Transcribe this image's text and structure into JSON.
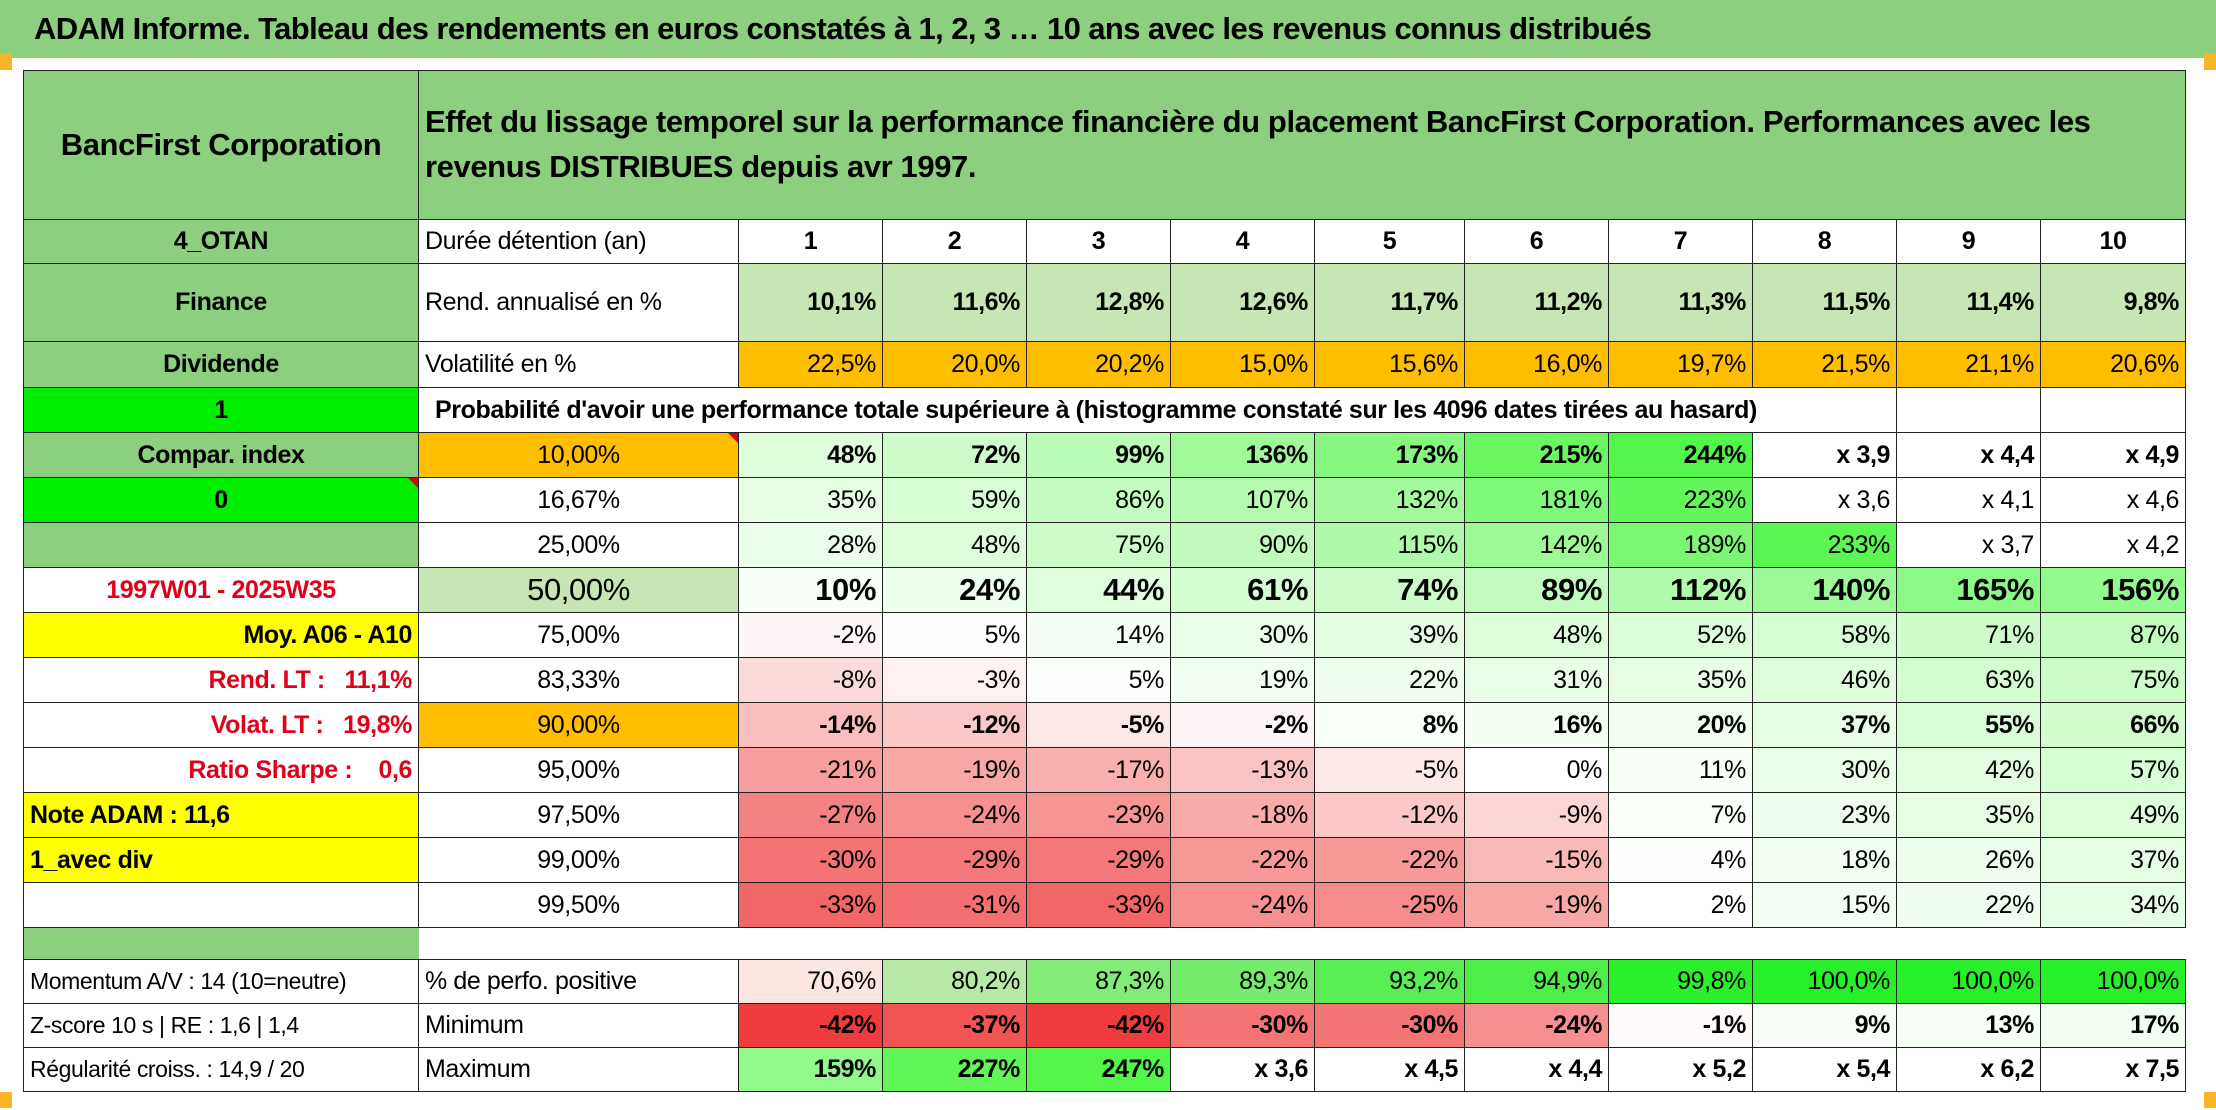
{
  "title": "ADAM Informe. Tableau des rendements en euros constatés à 1, 2, 3 … 10 ans avec les revenus connus distribués",
  "header": {
    "company": "BancFirst Corporation",
    "description": "Effet du lissage temporel sur la performance financière du placement BancFirst Corporation. Performances avec les revenus DISTRIBUES depuis avr 1997."
  },
  "left_panel": {
    "code": "4_OTAN",
    "sector": "Finance",
    "type": "Dividende",
    "flag": "1",
    "compar_index": "Compar. index",
    "zero": "0",
    "period": "1997W01 - 2025W35",
    "moy": "Moy. A06 - A10",
    "rend_lt": "Rend. LT :   11,1%",
    "volat_lt": "Volat. LT :   19,8%",
    "sharpe": "Ratio Sharpe :    0,6",
    "note_adam": "Note ADAM : 11,6",
    "avec_div": "1_avec div"
  },
  "holding": {
    "label": "Durée détention (an)",
    "years": [
      "1",
      "2",
      "3",
      "4",
      "5",
      "6",
      "7",
      "8",
      "9",
      "10"
    ]
  },
  "rend": {
    "label": "Rend. annualisé en %",
    "values": [
      "10,1%",
      "11,6%",
      "12,8%",
      "12,6%",
      "11,7%",
      "11,2%",
      "11,3%",
      "11,5%",
      "11,4%",
      "9,8%"
    ]
  },
  "volat": {
    "label": "Volatilité en %",
    "values": [
      "22,5%",
      "20,0%",
      "20,2%",
      "15,0%",
      "15,6%",
      "16,0%",
      "19,7%",
      "21,5%",
      "21,1%",
      "20,6%"
    ]
  },
  "proba_title": "Probabilité d'avoir une performance totale supérieure à (histogramme constaté sur les 4096 dates tirées au hasard)",
  "percentiles": [
    {
      "p": "10,00%",
      "values": [
        "48%",
        "72%",
        "99%",
        "136%",
        "173%",
        "215%",
        "244%",
        "x 3,9",
        "x 4,4",
        "x 4,9"
      ]
    },
    {
      "p": "16,67%",
      "values": [
        "35%",
        "59%",
        "86%",
        "107%",
        "132%",
        "181%",
        "223%",
        "x 3,6",
        "x 4,1",
        "x 4,6"
      ]
    },
    {
      "p": "25,00%",
      "values": [
        "28%",
        "48%",
        "75%",
        "90%",
        "115%",
        "142%",
        "189%",
        "233%",
        "x 3,7",
        "x 4,2"
      ]
    },
    {
      "p": "50,00%",
      "values": [
        "10%",
        "24%",
        "44%",
        "61%",
        "74%",
        "89%",
        "112%",
        "140%",
        "165%",
        "156%"
      ]
    },
    {
      "p": "75,00%",
      "values": [
        "-2%",
        "5%",
        "14%",
        "30%",
        "39%",
        "48%",
        "52%",
        "58%",
        "71%",
        "87%"
      ]
    },
    {
      "p": "83,33%",
      "values": [
        "-8%",
        "-3%",
        "5%",
        "19%",
        "22%",
        "31%",
        "35%",
        "46%",
        "63%",
        "75%"
      ]
    },
    {
      "p": "90,00%",
      "values": [
        "-14%",
        "-12%",
        "-5%",
        "-2%",
        "8%",
        "16%",
        "20%",
        "37%",
        "55%",
        "66%"
      ]
    },
    {
      "p": "95,00%",
      "values": [
        "-21%",
        "-19%",
        "-17%",
        "-13%",
        "-5%",
        "0%",
        "11%",
        "30%",
        "42%",
        "57%"
      ]
    },
    {
      "p": "97,50%",
      "values": [
        "-27%",
        "-24%",
        "-23%",
        "-18%",
        "-12%",
        "-9%",
        "7%",
        "23%",
        "35%",
        "49%"
      ]
    },
    {
      "p": "99,00%",
      "values": [
        "-30%",
        "-29%",
        "-29%",
        "-22%",
        "-22%",
        "-15%",
        "4%",
        "18%",
        "26%",
        "37%"
      ]
    },
    {
      "p": "99,50%",
      "values": [
        "-33%",
        "-31%",
        "-33%",
        "-24%",
        "-25%",
        "-19%",
        "2%",
        "15%",
        "22%",
        "34%"
      ]
    }
  ],
  "stats": {
    "momentum": "Momentum A/V : 14 (10=neutre)",
    "zscore": "Z-score 10 s | RE : 1,6 | 1,4",
    "regularite": "Régularité croiss. : 14,9 / 20",
    "positive": {
      "label": "% de perfo. positive",
      "values": [
        "70,6%",
        "80,2%",
        "87,3%",
        "89,3%",
        "93,2%",
        "94,9%",
        "99,8%",
        "100,0%",
        "100,0%",
        "100,0%"
      ]
    },
    "minimum": {
      "label": "Minimum",
      "values": [
        "-42%",
        "-37%",
        "-42%",
        "-30%",
        "-30%",
        "-24%",
        "-1%",
        "9%",
        "13%",
        "17%"
      ]
    },
    "maximum": {
      "label": "Maximum",
      "values": [
        "159%",
        "227%",
        "247%",
        "x 3,6",
        "x 4,5",
        "x 4,4",
        "x 5,2",
        "x 5,4",
        "x 6,2",
        "x 7,5"
      ]
    }
  },
  "colors": {
    "header_green": "#8ccf7e",
    "light_green": "#c8e6b4",
    "orange": "#ffbf00",
    "bright_green": "#00ee00",
    "yellow": "#ffff00",
    "red_text": "#e0001a"
  }
}
